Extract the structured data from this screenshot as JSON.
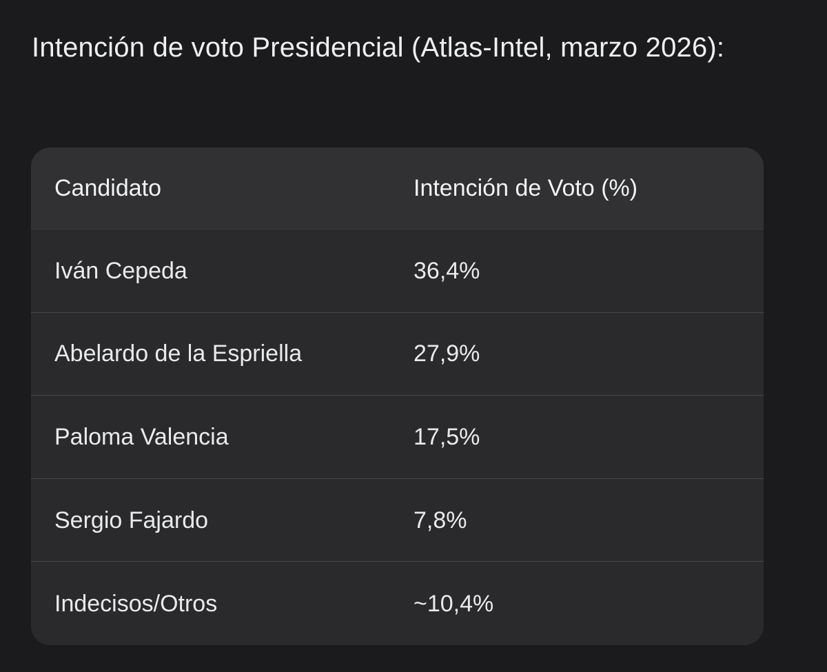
{
  "page": {
    "title": "Intención de voto Presidencial (Atlas-Intel, marzo 2026):"
  },
  "table": {
    "headers": [
      "Candidato",
      "Intención de Voto (%)"
    ],
    "rows": [
      {
        "candidate": "Iván Cepeda",
        "vote": "36,4%"
      },
      {
        "candidate": "Abelardo de la Espriella",
        "vote": "27,9%"
      },
      {
        "candidate": "Paloma Valencia",
        "vote": "17,5%"
      },
      {
        "candidate": "Sergio Fajardo",
        "vote": "7,8%"
      },
      {
        "candidate": "Indecisos/Otros",
        "vote": "~10,4%"
      }
    ]
  },
  "colors": {
    "background": "#1b1b1d",
    "table_body": "#2a2a2c",
    "table_header": "#313133",
    "text": "#ecedef"
  }
}
